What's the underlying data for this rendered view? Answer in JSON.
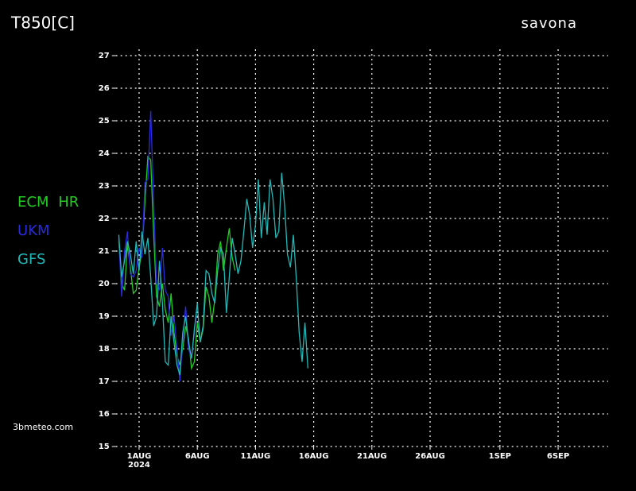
{
  "chart_data": {
    "type": "line",
    "title": "T850[C]",
    "location": "savona",
    "source": "3bmeteo.com",
    "x_year_label": "2024",
    "xlim": [
      -2,
      40.3
    ],
    "ylim": [
      15,
      27
    ],
    "yticks": [
      15,
      16,
      17,
      18,
      19,
      20,
      21,
      22,
      23,
      24,
      25,
      26,
      27
    ],
    "xticks": [
      {
        "value": 0,
        "label": "1AUG"
      },
      {
        "value": 5,
        "label": "6AUG"
      },
      {
        "value": 10,
        "label": "11AUG"
      },
      {
        "value": 15,
        "label": "16AUG"
      },
      {
        "value": 20,
        "label": "21AUG"
      },
      {
        "value": 25,
        "label": "26AUG"
      },
      {
        "value": 31,
        "label": "1SEP"
      },
      {
        "value": 36,
        "label": "6SEP"
      }
    ],
    "grid": true,
    "x": [
      -1.75,
      -1.5,
      -1.25,
      -1,
      -0.75,
      -0.5,
      -0.25,
      0,
      0.25,
      0.5,
      0.75,
      1,
      1.25,
      1.5,
      1.75,
      2,
      2.25,
      2.5,
      2.75,
      3,
      3.25,
      3.5,
      3.75,
      4,
      4.25,
      4.5,
      4.75,
      5,
      5.25,
      5.5,
      5.75,
      6,
      6.25,
      6.5,
      6.75,
      7,
      7.25,
      7.5,
      7.75,
      8,
      8.25,
      8.5,
      8.75,
      9,
      9.25,
      9.5,
      9.75,
      10,
      10.25,
      10.5,
      10.75,
      11,
      11.25,
      11.5,
      11.75,
      12,
      12.25,
      12.5,
      12.75,
      13,
      13.25,
      13.5,
      13.75,
      14,
      14.25,
      14.5
    ],
    "series": [
      {
        "name": "ECM HR",
        "color": "#22cc22",
        "values": [
          21.3,
          20.0,
          19.8,
          21.2,
          20.5,
          19.7,
          19.8,
          20.5,
          21.0,
          22.5,
          23.9,
          23.8,
          21.5,
          19.6,
          19.3,
          20.0,
          19.2,
          18.8,
          19.7,
          18.5,
          17.8,
          17.5,
          18.0,
          18.7,
          18.3,
          17.4,
          17.6,
          18.8,
          18.2,
          18.6,
          19.9,
          19.6,
          18.8,
          19.5,
          20.9,
          21.3,
          20.4,
          21.1,
          21.7,
          20.8,
          20.4,
          null,
          null,
          null,
          null,
          null,
          null,
          null,
          null,
          null,
          null,
          null,
          null,
          null,
          null,
          null,
          null,
          null,
          null,
          null,
          null,
          null,
          null,
          null,
          null,
          null
        ]
      },
      {
        "name": "UKM",
        "color": "#2a2ae0",
        "values": [
          21.4,
          19.6,
          21.0,
          21.6,
          20.3,
          20.2,
          20.4,
          21.1,
          20.8,
          23.1,
          23.2,
          25.3,
          22.5,
          20.0,
          19.8,
          21.1,
          19.8,
          19.6,
          18.4,
          19.0,
          18.0,
          17.0,
          18.3,
          19.3,
          18.0,
          17.7,
          18.5,
          19.4,
          null,
          null,
          null,
          null,
          null,
          null,
          null,
          null,
          null,
          null,
          null,
          null,
          null,
          null,
          null,
          null,
          null,
          null,
          null,
          null,
          null,
          null,
          null,
          null,
          null,
          null,
          null,
          null,
          null,
          null,
          null,
          null,
          null,
          null,
          null,
          null,
          null,
          null
        ]
      },
      {
        "name": "GFS",
        "color": "#22b8b8",
        "values": [
          21.5,
          20.2,
          20.7,
          21.3,
          20.9,
          20.3,
          21.3,
          20.4,
          21.6,
          20.9,
          21.4,
          20.2,
          18.7,
          19.0,
          20.7,
          19.4,
          17.6,
          17.5,
          19.0,
          18.2,
          17.5,
          17.2,
          18.5,
          19.0,
          18.2,
          17.7,
          18.6,
          19.4,
          18.2,
          18.7,
          20.4,
          20.3,
          19.7,
          19.4,
          20.4,
          21.1,
          20.9,
          19.1,
          20.2,
          21.4,
          20.9,
          20.3,
          20.7,
          21.6,
          22.6,
          22.1,
          21.1,
          21.8,
          23.2,
          21.4,
          22.5,
          21.5,
          23.2,
          22.6,
          21.4,
          21.6,
          23.4,
          22.4,
          20.9,
          20.5,
          21.5,
          20.2,
          18.5,
          17.6,
          18.8,
          17.4
        ]
      }
    ]
  }
}
